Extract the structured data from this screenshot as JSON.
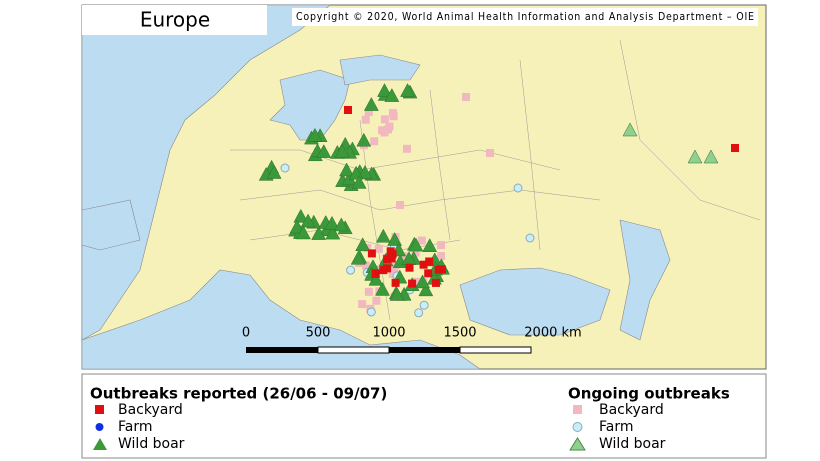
{
  "map": {
    "title": "Europe",
    "copyright": "Copyright © 2020, World Animal Health Information and Analysis Department – OIE",
    "scale_bar": {
      "labels": [
        "0",
        "500",
        "1000",
        "1500",
        "2000 km"
      ]
    }
  },
  "legend": {
    "reported": {
      "title": "Outbreaks reported (26/06 - 09/07)",
      "items": [
        "Backyard",
        "Farm",
        "Wild boar"
      ]
    },
    "ongoing": {
      "title": "Ongoing outbreaks",
      "items": [
        "Backyard",
        "Farm",
        "Wild boar"
      ]
    }
  }
}
